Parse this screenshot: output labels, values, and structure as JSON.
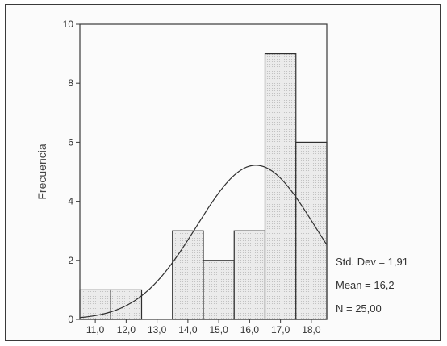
{
  "chart_data": {
    "type": "bar",
    "title": "",
    "xlabel": "",
    "ylabel": "Frecuencia",
    "ylim": [
      0,
      10
    ],
    "yticks": [
      "0",
      "2",
      "4",
      "6",
      "8",
      "10"
    ],
    "categories": [
      "11,0",
      "12,0",
      "13,0",
      "14,0",
      "15,0",
      "16,0",
      "17,0",
      "18,0"
    ],
    "values": [
      1,
      1,
      0,
      3,
      2,
      3,
      9,
      6
    ],
    "normal_curve": {
      "mean": 16.2,
      "std_dev": 1.91,
      "n": 25,
      "bin_width": 1
    },
    "annotations": [
      "Std. Dev = 1,91",
      "Mean = 16,2",
      "N = 25,00"
    ],
    "colors": {
      "bar_fill": "#e4e4e4",
      "stroke": "#2f2f2f"
    }
  }
}
